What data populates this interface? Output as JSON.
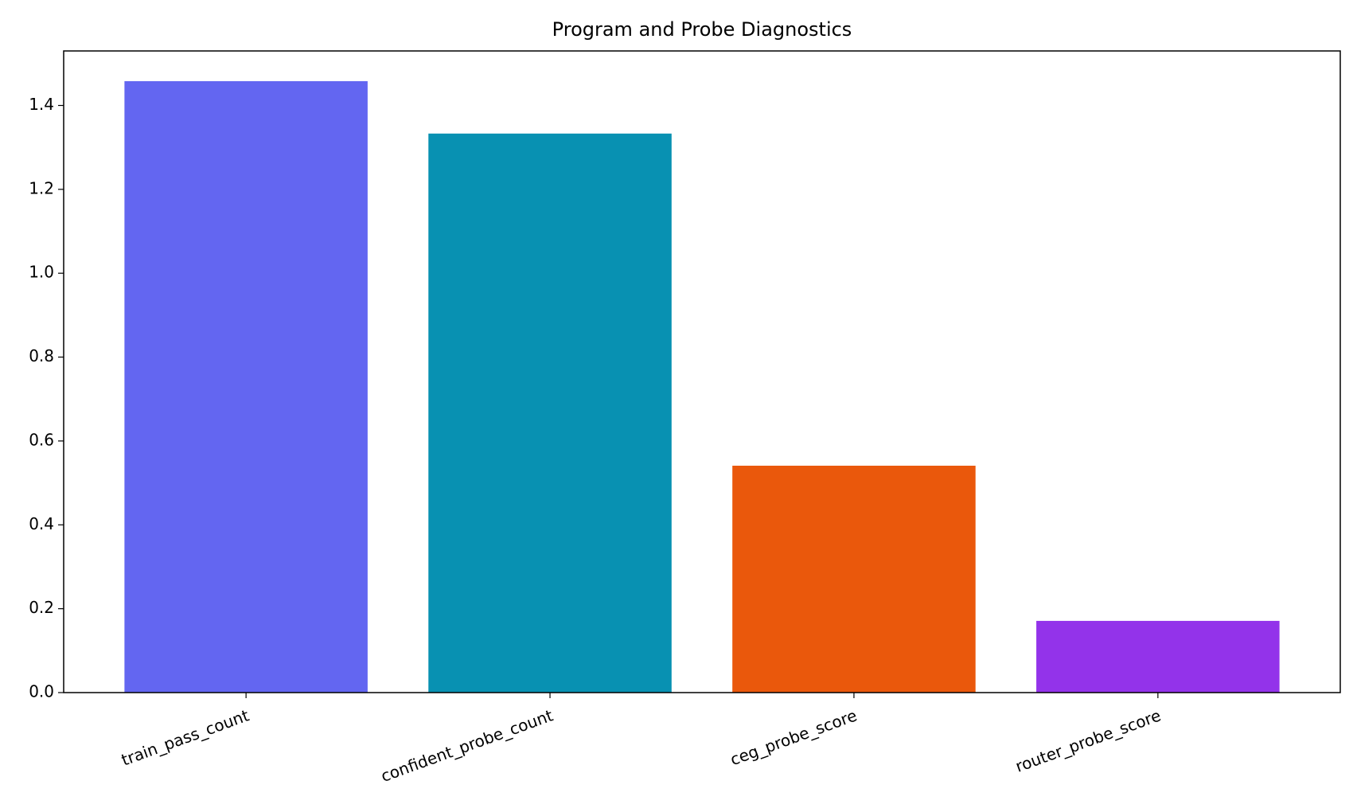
{
  "chart_data": {
    "type": "bar",
    "title": "Program and Probe Diagnostics",
    "categories": [
      "train_pass_count",
      "confident_probe_count",
      "ceg_probe_score",
      "router_probe_score"
    ],
    "values": [
      1.458,
      1.333,
      0.541,
      0.171
    ],
    "colors": [
      "#6366f1",
      "#0891b2",
      "#ea580c",
      "#9333ea"
    ],
    "ylim": [
      0,
      1.53
    ],
    "yticks": [
      {
        "value": 0,
        "label": "0.0"
      },
      0.2,
      0.4,
      0.6,
      0.8,
      {
        "value": 1,
        "label": "1.0"
      },
      1.2,
      1.4
    ]
  }
}
